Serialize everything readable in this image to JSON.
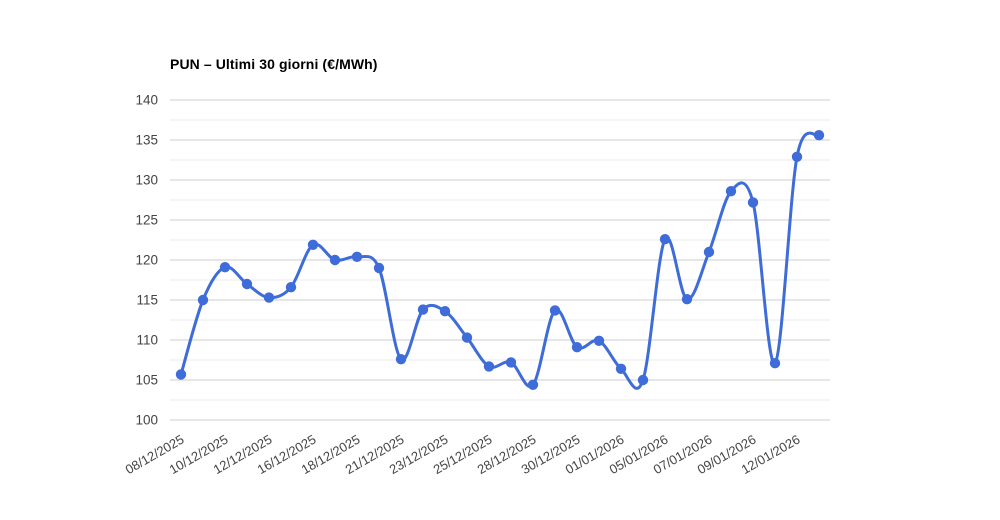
{
  "chart_data": {
    "type": "line",
    "title": "PUN – Ultimi 30 giorni (€/MWh)",
    "unit": "€/MWh",
    "smooth": true,
    "grid": true,
    "legend": "none",
    "ylim": [
      100,
      140
    ],
    "y_ticks": [
      100,
      105,
      110,
      115,
      120,
      125,
      130,
      135,
      140
    ],
    "y_minor_step": 2.5,
    "values": [
      105.7,
      115.0,
      119.1,
      117.0,
      115.3,
      116.6,
      121.9,
      120.0,
      120.4,
      119.0,
      107.6,
      113.8,
      113.6,
      110.3,
      106.7,
      107.2,
      104.4,
      113.7,
      109.1,
      109.9,
      106.4,
      105.0,
      122.6,
      115.1,
      121.0,
      128.6,
      127.2,
      107.1,
      132.9,
      135.6
    ],
    "x_ticks": [
      {
        "label": "08/12/2025",
        "point_index": 0
      },
      {
        "label": "10/12/2025",
        "point_index": 2
      },
      {
        "label": "12/12/2025",
        "point_index": 4
      },
      {
        "label": "16/12/2025",
        "point_index": 6
      },
      {
        "label": "18/12/2025",
        "point_index": 8
      },
      {
        "label": "21/12/2025",
        "point_index": 10
      },
      {
        "label": "23/12/2025",
        "point_index": 12
      },
      {
        "label": "25/12/2025",
        "point_index": 14
      },
      {
        "label": "28/12/2025",
        "point_index": 16
      },
      {
        "label": "30/12/2025",
        "point_index": 18
      },
      {
        "label": "01/01/2026",
        "point_index": 20
      },
      {
        "label": "05/01/2026",
        "point_index": 22
      },
      {
        "label": "07/01/2026",
        "point_index": 24
      },
      {
        "label": "09/01/2026",
        "point_index": 26
      },
      {
        "label": "12/01/2026",
        "point_index": 28
      }
    ],
    "colors": {
      "line": "#3E6CD8",
      "marker": "#3E6CD8",
      "grid_major": "#CCCCCC",
      "grid_minor": "#EBEBEB",
      "tick_label": "#444444",
      "title": "#000000",
      "background": "#FFFFFF"
    }
  }
}
